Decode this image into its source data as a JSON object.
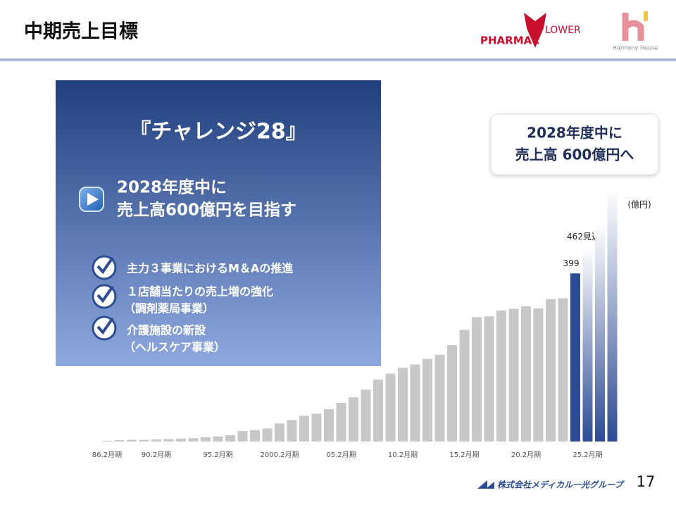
{
  "header": {
    "title": "中期売上目標",
    "logo_left_a": "PHARMAC",
    "logo_left_b": "LOWER",
    "logo_right": "Harmony House"
  },
  "panel": {
    "heading": "『チャレンジ28』",
    "goal": [
      "2028年度中に",
      "売上高600億円を目指す"
    ],
    "items": [
      [
        "主力３事業におけるM＆Aの推進"
      ],
      [
        "１店舗当たりの売上増の強化",
        "（調剤薬局事業）"
      ],
      [
        "介護施設の新設",
        "（ヘルスケア事業）"
      ]
    ]
  },
  "callout": [
    "2028年度中に",
    "売上高 600億円へ"
  ],
  "footer": {
    "company": "株式会社メディカル一光グループ",
    "page": "17"
  },
  "chart_data": {
    "type": "bar",
    "unit": "(億円)",
    "categories": [
      "86.2月期",
      null,
      null,
      null,
      "90.2月期",
      null,
      null,
      null,
      null,
      "95.2月期",
      null,
      null,
      null,
      null,
      "2000.2月期",
      null,
      null,
      null,
      null,
      "05.2月期",
      null,
      null,
      null,
      null,
      "10.2月期",
      null,
      null,
      null,
      null,
      "15.2月期",
      null,
      null,
      null,
      null,
      "20.2月期",
      null,
      null,
      null,
      null,
      "25.2月期",
      null,
      null
    ],
    "values": [
      2,
      3,
      4,
      4,
      5,
      6,
      7,
      8,
      10,
      12,
      15,
      25,
      27,
      31,
      43,
      51,
      61,
      66,
      77,
      92,
      105,
      123,
      147,
      161,
      175,
      183,
      196,
      206,
      229,
      265,
      295,
      297,
      311,
      315,
      321,
      316,
      338,
      340,
      399,
      462,
      519,
      600
    ],
    "value_labels": [
      null,
      null,
      null,
      null,
      null,
      null,
      null,
      null,
      null,
      null,
      null,
      null,
      null,
      null,
      null,
      null,
      null,
      null,
      null,
      null,
      null,
      null,
      null,
      null,
      null,
      null,
      null,
      null,
      null,
      null,
      null,
      null,
      null,
      null,
      null,
      null,
      null,
      null,
      "399",
      "462見込",
      null,
      null
    ],
    "colors": [
      "#c8c8c8",
      "#c8c8c8",
      "#c8c8c8",
      "#c8c8c8",
      "#c8c8c8",
      "#c8c8c8",
      "#c8c8c8",
      "#c8c8c8",
      "#c8c8c8",
      "#c8c8c8",
      "#c8c8c8",
      "#c8c8c8",
      "#c8c8c8",
      "#c8c8c8",
      "#c8c8c8",
      "#c8c8c8",
      "#c8c8c8",
      "#c8c8c8",
      "#c8c8c8",
      "#c8c8c8",
      "#c8c8c8",
      "#c8c8c8",
      "#c8c8c8",
      "#c8c8c8",
      "#c8c8c8",
      "#c8c8c8",
      "#c8c8c8",
      "#c8c8c8",
      "#c8c8c8",
      "#c8c8c8",
      "#c8c8c8",
      "#c8c8c8",
      "#c8c8c8",
      "#c8c8c8",
      "#c8c8c8",
      "#c8c8c8",
      "#c8c8c8",
      "#c8c8c8",
      "#2d4b94",
      "url(#fade)",
      "url(#fade)",
      "url(#fade)"
    ],
    "ylim": [
      0,
      600
    ],
    "grid": false
  }
}
